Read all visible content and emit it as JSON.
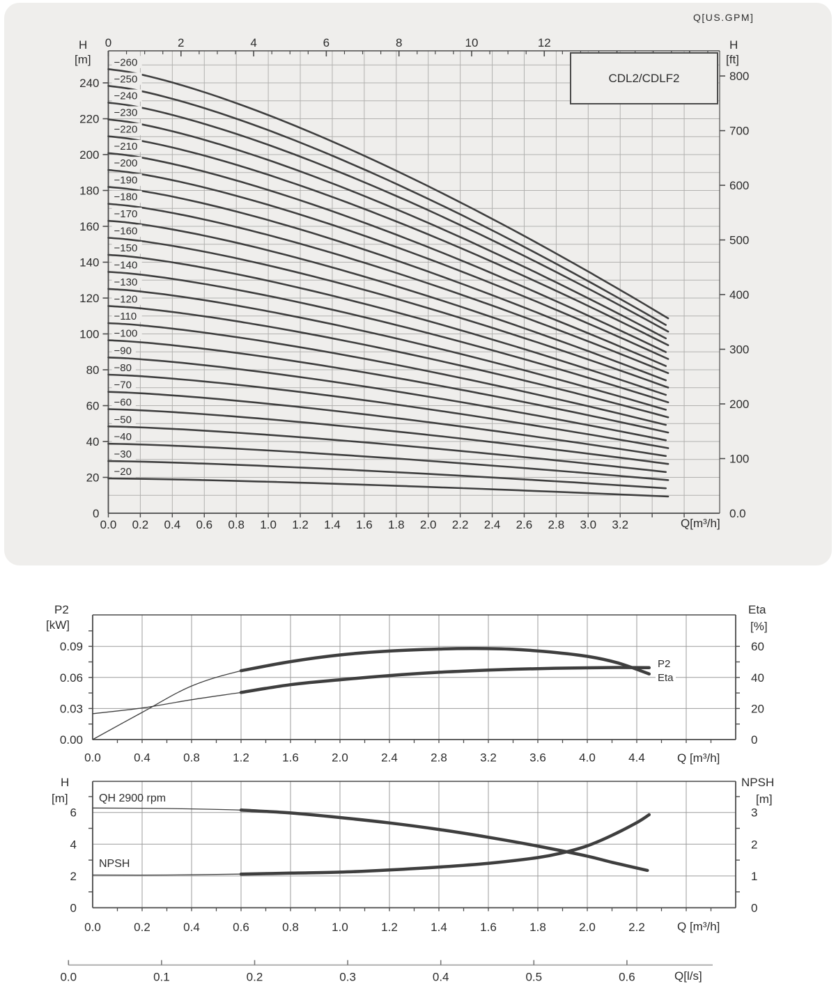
{
  "labels": {
    "gpm_title": "Q[US.GPM]",
    "top_left_title_1": "H",
    "top_left_title_2": "[m]",
    "top_right_title_1": "H",
    "top_right_title_2": "[ft]",
    "box_title": "CDL2/CDLF2",
    "top_x_title": "Q[m³/h]",
    "p2_left_title_1": "P2",
    "p2_left_title_2": "[kW]",
    "p2_right_title_1": "Eta",
    "p2_right_title_2": "[%]",
    "p2_curve_label": "P2",
    "eta_curve_label": "Eta",
    "p2_x_title": "Q [m³/h]",
    "qh_left_title_1": "H",
    "qh_left_title_2": "[m]",
    "qh_right_title_1": "NPSH",
    "qh_right_title_2": "[m]",
    "qh_curve_label": "QH 2900 rpm",
    "npsh_curve_label": "NPSH",
    "qh_x_title": "Q [m³/h]",
    "ls_title": "Q[l/s]"
  },
  "colors": {
    "panel_bg": "#efeeec",
    "grid_top": "#b2b1af",
    "grid_lower": "#9b9b9b",
    "axis": "#4a4a4a",
    "curve": "#3e3e3e",
    "text": "#2c2c2c",
    "ls_line": "#b0b0b0"
  },
  "chart_data": [
    {
      "type": "line",
      "name": "QH multi-stage curves",
      "title": "CDL2/CDLF2",
      "xlabel": "Q[m³/h]",
      "xlabel_top": "Q[US.GPM]",
      "ylabel_left": "H [m]",
      "ylabel_right": "H [ft]",
      "x_ticks": [
        "0.0",
        "0.2",
        "0.4",
        "0.6",
        "0.8",
        "1.0",
        "1.2",
        "1.4",
        "1.6",
        "1.8",
        "2.0",
        "2.2",
        "2.4",
        "2.6",
        "2.8",
        "3.0",
        "3.2"
      ],
      "gpm_ticks": [
        0,
        2,
        4,
        6,
        8,
        10,
        12
      ],
      "y_ticks_m": [
        0,
        20,
        40,
        60,
        80,
        100,
        120,
        140,
        160,
        180,
        200,
        220,
        240
      ],
      "y_ticks_ft": [
        "0.0",
        "100",
        "200",
        "300",
        "400",
        "500",
        "600",
        "700",
        "800"
      ],
      "curves": [
        {
          "label": "−20",
          "v": 20
        },
        {
          "label": "−30",
          "v": 30
        },
        {
          "label": "−40",
          "v": 40
        },
        {
          "label": "−50",
          "v": 50
        },
        {
          "label": "−60",
          "v": 60
        },
        {
          "label": "−70",
          "v": 70
        },
        {
          "label": "−80",
          "v": 80
        },
        {
          "label": "−90",
          "v": 90
        },
        {
          "label": "−100",
          "v": 100
        },
        {
          "label": "−110",
          "v": 110
        },
        {
          "label": "−120",
          "v": 120
        },
        {
          "label": "−130",
          "v": 130
        },
        {
          "label": "−140",
          "v": 140
        },
        {
          "label": "−150",
          "v": 150
        },
        {
          "label": "−160",
          "v": 160
        },
        {
          "label": "−170",
          "v": 170
        },
        {
          "label": "−180",
          "v": 180
        },
        {
          "label": "−190",
          "v": 190
        },
        {
          "label": "−200",
          "v": 200
        },
        {
          "label": "−210",
          "v": 210
        },
        {
          "label": "−220",
          "v": 220
        },
        {
          "label": "−230",
          "v": 230
        },
        {
          "label": "−240",
          "v": 240
        },
        {
          "label": "−250",
          "v": 250
        },
        {
          "label": "−260",
          "v": 260
        }
      ],
      "model": {
        "h0_a": 0.972,
        "h0_b": 7.5e-05,
        "h1_a": 0.47,
        "h1_b": 0.0002,
        "exp": 1.35,
        "q_end": 3.5
      }
    },
    {
      "type": "line",
      "name": "P2 and Eta curves",
      "xlabel": "Q [m³/h]",
      "ylabel_left": "P2 [kW]",
      "ylabel_right": "Eta [%]",
      "x_ticks": [
        "0.0",
        "0.4",
        "0.8",
        "1.2",
        "1.6",
        "2.0",
        "2.4",
        "2.8",
        "3.2",
        "3.6",
        "4.0",
        "4.4"
      ],
      "y_left_ticks": [
        "0.00",
        "0.03",
        "0.06",
        "0.09"
      ],
      "y_right_ticks": [
        "0",
        "20",
        "40",
        "60"
      ],
      "thick_from": 1.2,
      "p2_kw": [
        [
          0,
          0.025
        ],
        [
          0.4,
          0.0305
        ],
        [
          0.8,
          0.0385
        ],
        [
          1.2,
          0.0455
        ],
        [
          1.6,
          0.053
        ],
        [
          2.0,
          0.0578
        ],
        [
          2.4,
          0.0618
        ],
        [
          2.8,
          0.065
        ],
        [
          3.2,
          0.0671
        ],
        [
          3.6,
          0.0685
        ],
        [
          4.0,
          0.0693
        ],
        [
          4.25,
          0.0696
        ],
        [
          4.5,
          0.0694
        ]
      ],
      "eta_pct": [
        [
          0,
          0
        ],
        [
          0.4,
          17.5
        ],
        [
          0.8,
          34.5
        ],
        [
          1.2,
          44.3
        ],
        [
          1.6,
          50.2
        ],
        [
          2.0,
          54.5
        ],
        [
          2.4,
          57.0
        ],
        [
          2.8,
          58.3
        ],
        [
          3.1,
          58.6
        ],
        [
          3.4,
          58.1
        ],
        [
          3.7,
          56.4
        ],
        [
          4.0,
          53.6
        ],
        [
          4.25,
          49.3
        ],
        [
          4.5,
          42.3
        ]
      ]
    },
    {
      "type": "line",
      "name": "QH single stage and NPSH",
      "xlabel": "Q [m³/h]",
      "xlabel2": "Q[l/s]",
      "ylabel_left": "H [m]",
      "ylabel_right": "NPSH [m]",
      "x_ticks": [
        "0.0",
        "0.2",
        "0.4",
        "0.6",
        "0.8",
        "1.0",
        "1.2",
        "1.4",
        "1.6",
        "1.8",
        "2.0",
        "2.2"
      ],
      "y_left_ticks": [
        "0",
        "2",
        "4",
        "6"
      ],
      "y_right_ticks": [
        "0",
        "1",
        "2",
        "3"
      ],
      "ls_ticks": [
        "0.0",
        "0.1",
        "0.2",
        "0.3",
        "0.4",
        "0.5",
        "0.6"
      ],
      "thick_from": 0.6,
      "qh_m": [
        [
          0,
          6.28
        ],
        [
          0.3,
          6.25
        ],
        [
          0.6,
          6.15
        ],
        [
          0.8,
          5.97
        ],
        [
          1.0,
          5.68
        ],
        [
          1.2,
          5.34
        ],
        [
          1.4,
          4.93
        ],
        [
          1.6,
          4.44
        ],
        [
          1.8,
          3.88
        ],
        [
          2.0,
          3.25
        ],
        [
          2.1,
          2.86
        ],
        [
          2.243,
          2.35
        ]
      ],
      "npsh_m": [
        [
          0,
          1.03
        ],
        [
          0.3,
          1.03
        ],
        [
          0.6,
          1.06
        ],
        [
          0.8,
          1.09
        ],
        [
          1.0,
          1.12
        ],
        [
          1.2,
          1.19
        ],
        [
          1.4,
          1.28
        ],
        [
          1.6,
          1.4
        ],
        [
          1.8,
          1.58
        ],
        [
          1.9,
          1.73
        ],
        [
          2.0,
          1.95
        ],
        [
          2.1,
          2.28
        ],
        [
          2.2,
          2.68
        ],
        [
          2.25,
          2.93
        ]
      ]
    }
  ]
}
